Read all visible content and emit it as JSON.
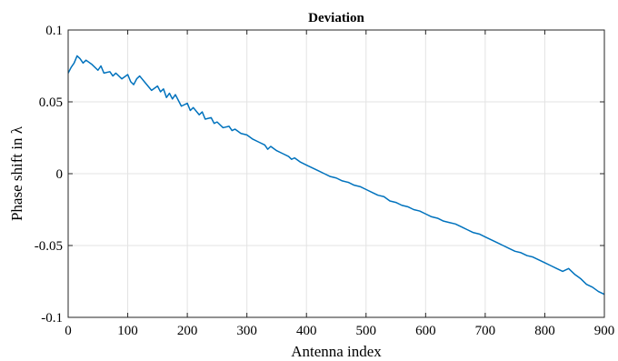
{
  "chart_data": {
    "type": "line",
    "title": "Deviation",
    "xlabel": "Antenna index",
    "ylabel": "Phase shift in λ",
    "xlim": [
      0,
      900
    ],
    "ylim": [
      -0.1,
      0.1
    ],
    "x_ticks": [
      0,
      100,
      200,
      300,
      400,
      500,
      600,
      700,
      800,
      900
    ],
    "y_ticks": [
      0.1,
      0.05,
      0,
      -0.05,
      -0.1
    ],
    "y_tick_labels": [
      "0.1",
      "0.05",
      "0",
      "-0.05",
      "-0.1"
    ],
    "grid": true,
    "color": "#0072bd",
    "series": [
      {
        "x": [
          0,
          5,
          10,
          15,
          20,
          25,
          30,
          40,
          50,
          55,
          60,
          70,
          75,
          80,
          90,
          100,
          105,
          110,
          115,
          120,
          130,
          140,
          150,
          155,
          160,
          165,
          170,
          175,
          180,
          190,
          200,
          205,
          210,
          220,
          225,
          230,
          240,
          245,
          250,
          260,
          270,
          275,
          280,
          290,
          300,
          310,
          320,
          330,
          335,
          340,
          350,
          360,
          370,
          375,
          380,
          390,
          400,
          410,
          420,
          430,
          440,
          450,
          460,
          470,
          480,
          490,
          500,
          510,
          520,
          530,
          540,
          550,
          560,
          570,
          580,
          590,
          600,
          610,
          620,
          630,
          640,
          650,
          660,
          670,
          680,
          690,
          700,
          710,
          720,
          730,
          740,
          750,
          760,
          770,
          780,
          790,
          800,
          810,
          820,
          830,
          840,
          850,
          860,
          870,
          880,
          890,
          900
        ],
        "values": [
          0.07,
          0.074,
          0.077,
          0.082,
          0.08,
          0.077,
          0.079,
          0.076,
          0.072,
          0.075,
          0.07,
          0.071,
          0.068,
          0.07,
          0.066,
          0.069,
          0.064,
          0.062,
          0.066,
          0.068,
          0.063,
          0.058,
          0.061,
          0.057,
          0.059,
          0.053,
          0.056,
          0.052,
          0.055,
          0.047,
          0.049,
          0.044,
          0.046,
          0.041,
          0.043,
          0.038,
          0.039,
          0.035,
          0.036,
          0.032,
          0.033,
          0.03,
          0.031,
          0.028,
          0.027,
          0.024,
          0.022,
          0.02,
          0.017,
          0.019,
          0.016,
          0.014,
          0.012,
          0.01,
          0.011,
          0.008,
          0.006,
          0.004,
          0.002,
          0.0,
          -0.002,
          -0.003,
          -0.005,
          -0.006,
          -0.008,
          -0.009,
          -0.011,
          -0.013,
          -0.015,
          -0.016,
          -0.019,
          -0.02,
          -0.022,
          -0.023,
          -0.025,
          -0.026,
          -0.028,
          -0.03,
          -0.031,
          -0.033,
          -0.034,
          -0.035,
          -0.037,
          -0.039,
          -0.041,
          -0.042,
          -0.044,
          -0.046,
          -0.048,
          -0.05,
          -0.052,
          -0.054,
          -0.055,
          -0.057,
          -0.058,
          -0.06,
          -0.062,
          -0.064,
          -0.066,
          -0.068,
          -0.066,
          -0.07,
          -0.073,
          -0.077,
          -0.079,
          -0.082,
          -0.084
        ]
      }
    ]
  }
}
